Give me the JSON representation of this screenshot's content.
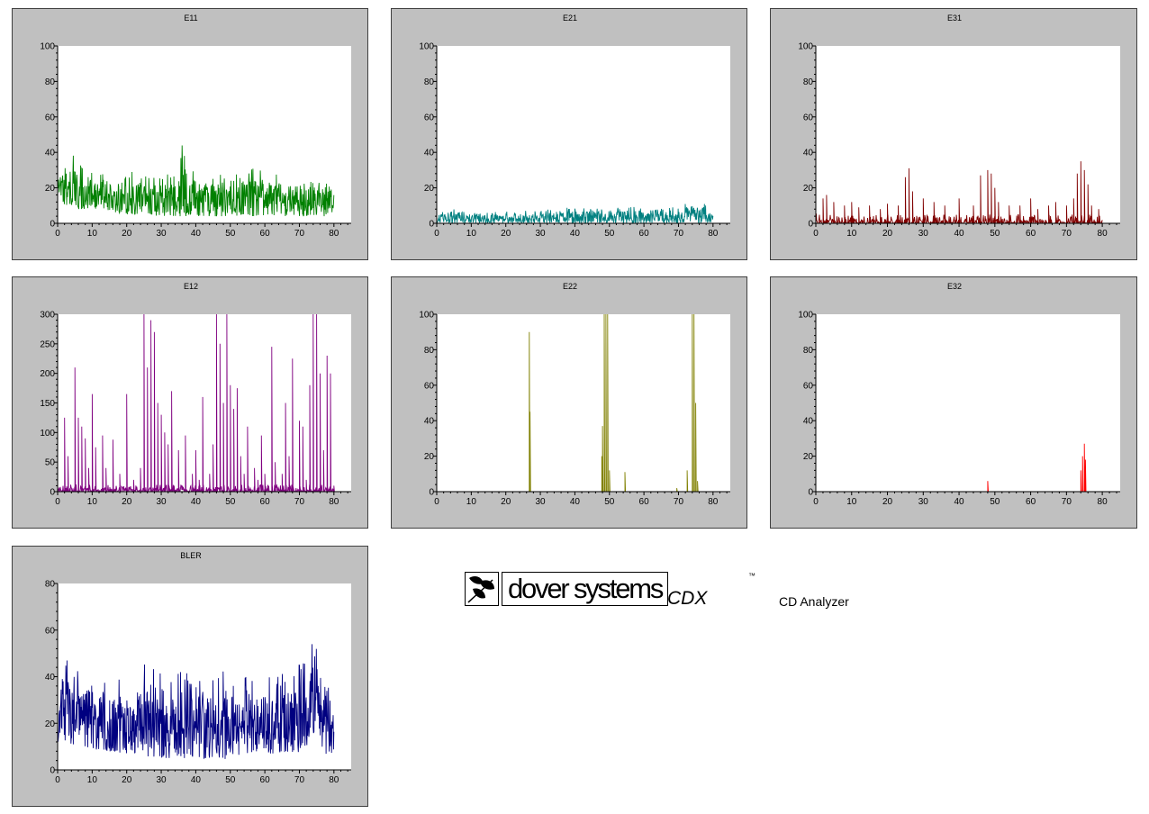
{
  "colors": {
    "panel_bg": "#c0c0c0",
    "plot_bg": "#ffffff",
    "E11": "#008000",
    "E21": "#008080",
    "E31": "#800000",
    "E12": "#800080",
    "E22": "#808000",
    "E32": "#ff0000",
    "BLER": "#000080"
  },
  "branding": {
    "company": "dover systems",
    "product": "CDX",
    "trademark": "™",
    "subtitle": "CD Analyzer",
    "logo_icon": "dover-leaf-icon"
  },
  "chart_data": [
    {
      "id": "E11",
      "type": "line",
      "title": "E11",
      "xlim": [
        0,
        85
      ],
      "ylim": [
        0,
        100
      ],
      "xticks": [
        0,
        10,
        20,
        30,
        40,
        50,
        60,
        70,
        80
      ],
      "yticks": [
        0,
        20,
        40,
        60,
        80,
        100
      ],
      "x_end": 80,
      "series": [
        {
          "color": "#008000",
          "style": "dense",
          "envelope_x": [
            0,
            2,
            4,
            6,
            8,
            10,
            15,
            20,
            25,
            30,
            35,
            36,
            40,
            45,
            50,
            55,
            60,
            65,
            70,
            75,
            78,
            80
          ],
          "envelope_max": [
            35,
            38,
            40,
            34,
            33,
            32,
            27,
            30,
            27,
            28,
            30,
            46,
            30,
            28,
            28,
            32,
            30,
            28,
            27,
            26,
            30,
            20
          ],
          "envelope_min": [
            14,
            10,
            10,
            8,
            8,
            7,
            6,
            5,
            5,
            4,
            4,
            4,
            4,
            4,
            4,
            4,
            4,
            4,
            4,
            4,
            4,
            6
          ]
        }
      ]
    },
    {
      "id": "E21",
      "type": "line",
      "title": "E21",
      "xlim": [
        0,
        85
      ],
      "ylim": [
        0,
        100
      ],
      "xticks": [
        0,
        10,
        20,
        30,
        40,
        50,
        60,
        70,
        80
      ],
      "yticks": [
        0,
        20,
        40,
        60,
        80,
        100
      ],
      "x_end": 80,
      "series": [
        {
          "color": "#008080",
          "style": "dense",
          "envelope_x": [
            0,
            5,
            10,
            20,
            30,
            40,
            50,
            60,
            70,
            75,
            78,
            80
          ],
          "envelope_max": [
            6,
            8,
            8,
            7,
            8,
            9,
            9,
            10,
            11,
            12,
            13,
            6
          ],
          "envelope_min": [
            0,
            0,
            0,
            0,
            0,
            0,
            0,
            0,
            0,
            0,
            0,
            0
          ]
        }
      ]
    },
    {
      "id": "E31",
      "type": "line",
      "title": "E31",
      "xlim": [
        0,
        85
      ],
      "ylim": [
        0,
        100
      ],
      "xticks": [
        0,
        10,
        20,
        30,
        40,
        50,
        60,
        70,
        80
      ],
      "yticks": [
        0,
        20,
        40,
        60,
        80,
        100
      ],
      "x_end": 80,
      "series": [
        {
          "color": "#800000",
          "style": "sparse",
          "peaks": [
            [
              2,
              14
            ],
            [
              3,
              16
            ],
            [
              5,
              12
            ],
            [
              8,
              10
            ],
            [
              10,
              12
            ],
            [
              12,
              9
            ],
            [
              15,
              10
            ],
            [
              18,
              8
            ],
            [
              20,
              11
            ],
            [
              23,
              10
            ],
            [
              25,
              26
            ],
            [
              26,
              31
            ],
            [
              27,
              18
            ],
            [
              30,
              14
            ],
            [
              33,
              12
            ],
            [
              36,
              10
            ],
            [
              40,
              14
            ],
            [
              44,
              10
            ],
            [
              46,
              27
            ],
            [
              48,
              30
            ],
            [
              49,
              28
            ],
            [
              50,
              20
            ],
            [
              51,
              12
            ],
            [
              54,
              10
            ],
            [
              57,
              10
            ],
            [
              60,
              14
            ],
            [
              62,
              8
            ],
            [
              65,
              10
            ],
            [
              67,
              12
            ],
            [
              70,
              10
            ],
            [
              72,
              14
            ],
            [
              73,
              28
            ],
            [
              74,
              35
            ],
            [
              75,
              30
            ],
            [
              76,
              22
            ],
            [
              77,
              10
            ],
            [
              79,
              8
            ]
          ],
          "noise_max": 5
        }
      ]
    },
    {
      "id": "E12",
      "type": "line",
      "title": "E12",
      "xlim": [
        0,
        85
      ],
      "ylim": [
        0,
        300
      ],
      "xticks": [
        0,
        10,
        20,
        30,
        40,
        50,
        60,
        70,
        80
      ],
      "yticks": [
        0,
        50,
        100,
        150,
        200,
        250,
        300
      ],
      "x_end": 80,
      "series": [
        {
          "color": "#800080",
          "style": "sparse",
          "peaks": [
            [
              2,
              125
            ],
            [
              3,
              60
            ],
            [
              5,
              210
            ],
            [
              6,
              125
            ],
            [
              7,
              110
            ],
            [
              8,
              90
            ],
            [
              9,
              40
            ],
            [
              10,
              165
            ],
            [
              11,
              75
            ],
            [
              13,
              95
            ],
            [
              14,
              40
            ],
            [
              16,
              88
            ],
            [
              18,
              30
            ],
            [
              20,
              165
            ],
            [
              22,
              20
            ],
            [
              24,
              40
            ],
            [
              25,
              300
            ],
            [
              26,
              210
            ],
            [
              27,
              290
            ],
            [
              28,
              270
            ],
            [
              29,
              150
            ],
            [
              30,
              130
            ],
            [
              31,
              100
            ],
            [
              32,
              80
            ],
            [
              33,
              170
            ],
            [
              35,
              70
            ],
            [
              37,
              95
            ],
            [
              39,
              30
            ],
            [
              40,
              70
            ],
            [
              41,
              20
            ],
            [
              42,
              160
            ],
            [
              44,
              30
            ],
            [
              45,
              80
            ],
            [
              46,
              300
            ],
            [
              47,
              250
            ],
            [
              48,
              150
            ],
            [
              49,
              300
            ],
            [
              50,
              180
            ],
            [
              51,
              140
            ],
            [
              52,
              175
            ],
            [
              53,
              60
            ],
            [
              54,
              30
            ],
            [
              55,
              110
            ],
            [
              57,
              40
            ],
            [
              58,
              20
            ],
            [
              59,
              95
            ],
            [
              60,
              30
            ],
            [
              62,
              245
            ],
            [
              63,
              50
            ],
            [
              65,
              30
            ],
            [
              66,
              150
            ],
            [
              67,
              60
            ],
            [
              68,
              225
            ],
            [
              70,
              120
            ],
            [
              71,
              110
            ],
            [
              72,
              20
            ],
            [
              73,
              180
            ],
            [
              74,
              300
            ],
            [
              75,
              300
            ],
            [
              76,
              200
            ],
            [
              77,
              70
            ],
            [
              78,
              230
            ],
            [
              79,
              200
            ],
            [
              80,
              10
            ]
          ],
          "noise_max": 12
        }
      ]
    },
    {
      "id": "E22",
      "type": "line",
      "title": "E22",
      "xlim": [
        0,
        85
      ],
      "ylim": [
        0,
        100
      ],
      "xticks": [
        0,
        10,
        20,
        30,
        40,
        50,
        60,
        70,
        80
      ],
      "yticks": [
        0,
        20,
        40,
        60,
        80,
        100
      ],
      "x_end": 80,
      "series": [
        {
          "color": "#808000",
          "style": "sparse",
          "peaks": [
            [
              26.8,
              90
            ],
            [
              27,
              45
            ],
            [
              47.8,
              20
            ],
            [
              48,
              37
            ],
            [
              48.5,
              100
            ],
            [
              49,
              100
            ],
            [
              49.5,
              100
            ],
            [
              50,
              12
            ],
            [
              54.5,
              11
            ],
            [
              69.5,
              2
            ],
            [
              72.5,
              12
            ],
            [
              74,
              100
            ],
            [
              74.5,
              100
            ],
            [
              75,
              50
            ],
            [
              75.5,
              6
            ]
          ],
          "noise_max": 0
        }
      ]
    },
    {
      "id": "E32",
      "type": "line",
      "title": "E32",
      "xlim": [
        0,
        85
      ],
      "ylim": [
        0,
        100
      ],
      "xticks": [
        0,
        10,
        20,
        30,
        40,
        50,
        60,
        70,
        80
      ],
      "yticks": [
        0,
        20,
        40,
        60,
        80,
        100
      ],
      "x_end": 80,
      "series": [
        {
          "color": "#ff0000",
          "style": "sparse",
          "peaks": [
            [
              48,
              6
            ],
            [
              74,
              12
            ],
            [
              74.5,
              20
            ],
            [
              75,
              27
            ],
            [
              75.3,
              18
            ]
          ],
          "noise_max": 0
        }
      ]
    },
    {
      "id": "BLER",
      "type": "line",
      "title": "BLER",
      "xlim": [
        0,
        85
      ],
      "ylim": [
        0,
        80
      ],
      "xticks": [
        0,
        10,
        20,
        30,
        40,
        50,
        60,
        70,
        80
      ],
      "yticks": [
        0,
        20,
        40,
        60,
        80
      ],
      "x_end": 80,
      "series": [
        {
          "color": "#000080",
          "style": "dense",
          "envelope_x": [
            0,
            3,
            5,
            10,
            15,
            20,
            25,
            30,
            35,
            36,
            40,
            45,
            48,
            49,
            50,
            55,
            60,
            65,
            70,
            73,
            74,
            75,
            77,
            79,
            80
          ],
          "envelope_max": [
            45,
            48,
            45,
            42,
            40,
            38,
            46,
            42,
            42,
            60,
            42,
            40,
            48,
            45,
            40,
            40,
            40,
            42,
            45,
            50,
            60,
            55,
            40,
            48,
            30
          ],
          "envelope_min": [
            12,
            12,
            10,
            9,
            8,
            7,
            6,
            5,
            5,
            5,
            5,
            5,
            5,
            4,
            6,
            7,
            7,
            7,
            7,
            12,
            15,
            14,
            8,
            5,
            8
          ]
        }
      ]
    }
  ]
}
